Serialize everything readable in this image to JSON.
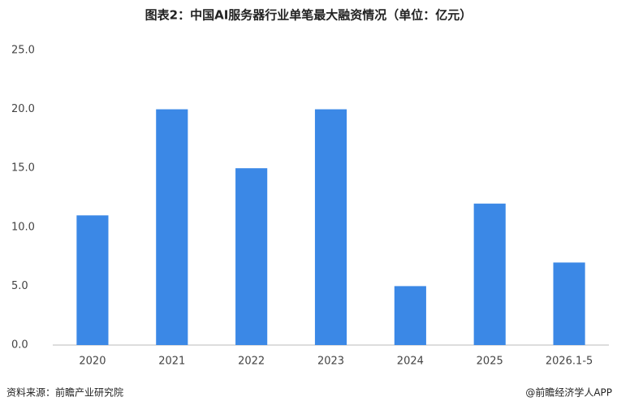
{
  "chart_data": {
    "type": "bar",
    "title": "图表2：中国AI服务器行业单笔最大融资情况（单位：亿元）",
    "categories": [
      "2020",
      "2021",
      "2022",
      "2023",
      "2024",
      "2025",
      "2026.1-5"
    ],
    "values": [
      11,
      20,
      15,
      20,
      5,
      12,
      7
    ],
    "color": "#3b88e6",
    "ylim": [
      0,
      25
    ],
    "yticks": [
      {
        "value": 0,
        "label": "0.0"
      },
      {
        "value": 5,
        "label": "5.0"
      },
      {
        "value": 10,
        "label": "10.0"
      },
      {
        "value": 15,
        "label": "15.0"
      },
      {
        "value": 20,
        "label": "20.0"
      },
      {
        "value": 25,
        "label": "25.0"
      }
    ],
    "grid": false,
    "source": "资料来源：前瞻产业研究院",
    "credit": "@前瞻经济学人APP"
  }
}
